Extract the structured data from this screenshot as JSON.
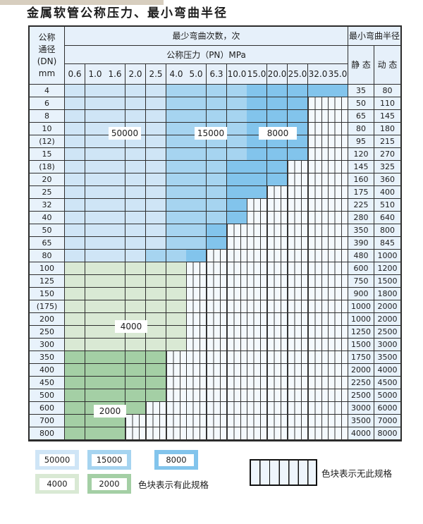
{
  "title": "金属软管公称压力、最小弯曲半径",
  "table": {
    "corner_lines": [
      "公称",
      "通径",
      "(DN)",
      "mm"
    ],
    "cycles_header": "最少弯曲次数，次",
    "pressure_header": "公称压力（PN）MPa",
    "radius_header": "最小弯曲半径",
    "static_label": "静 态",
    "dynamic_label": "动 态",
    "pressures": [
      "0.6",
      "1.0",
      "1.6",
      "2.0",
      "2.5",
      "4.0",
      "5.0",
      "6.3",
      "10.0",
      "15.0",
      "20.0",
      "25.0",
      "32.0",
      "35.0"
    ],
    "rows": [
      {
        "dn": "4",
        "st": "35",
        "dy": "80",
        "seg": [
          [
            "lb",
            5
          ],
          [
            "mb",
            4
          ],
          [
            "db",
            5
          ]
        ]
      },
      {
        "dn": "6",
        "st": "50",
        "dy": "110",
        "seg": [
          [
            "lb",
            5
          ],
          [
            "mb",
            4
          ],
          [
            "db",
            3
          ]
        ]
      },
      {
        "dn": "8",
        "st": "65",
        "dy": "145",
        "seg": [
          [
            "lb",
            5
          ],
          [
            "mb",
            4
          ],
          [
            "db",
            3
          ]
        ]
      },
      {
        "dn": "10",
        "st": "80",
        "dy": "180",
        "seg": [
          [
            "lb",
            5
          ],
          [
            "mb",
            4
          ],
          [
            "db",
            3
          ]
        ]
      },
      {
        "dn": "(12)",
        "st": "95",
        "dy": "215",
        "seg": [
          [
            "lb",
            5
          ],
          [
            "mb",
            4
          ],
          [
            "db",
            3
          ]
        ]
      },
      {
        "dn": "15",
        "st": "120",
        "dy": "270",
        "seg": [
          [
            "lb",
            5
          ],
          [
            "mb",
            4
          ],
          [
            "db",
            3
          ]
        ]
      },
      {
        "dn": "(18)",
        "st": "145",
        "dy": "325",
        "seg": [
          [
            "lb",
            5
          ],
          [
            "mb",
            3
          ],
          [
            "db",
            3
          ]
        ]
      },
      {
        "dn": "20",
        "st": "160",
        "dy": "360",
        "seg": [
          [
            "lb",
            5
          ],
          [
            "mb",
            3
          ],
          [
            "db",
            3
          ]
        ]
      },
      {
        "dn": "25",
        "st": "175",
        "dy": "400",
        "seg": [
          [
            "lb",
            5
          ],
          [
            "mb",
            3
          ],
          [
            "db",
            2
          ]
        ]
      },
      {
        "dn": "32",
        "st": "225",
        "dy": "510",
        "seg": [
          [
            "lb",
            5
          ],
          [
            "mb",
            3
          ],
          [
            "db",
            1
          ]
        ]
      },
      {
        "dn": "40",
        "st": "280",
        "dy": "640",
        "seg": [
          [
            "lb",
            5
          ],
          [
            "mb",
            3
          ],
          [
            "db",
            1
          ]
        ]
      },
      {
        "dn": "50",
        "st": "350",
        "dy": "800",
        "seg": [
          [
            "lb",
            5
          ],
          [
            "mb",
            2
          ],
          [
            "db",
            1
          ]
        ]
      },
      {
        "dn": "65",
        "st": "390",
        "dy": "845",
        "seg": [
          [
            "lb",
            5
          ],
          [
            "mb",
            2
          ],
          [
            "db",
            1
          ]
        ]
      },
      {
        "dn": "80",
        "st": "480",
        "dy": "1000",
        "seg": [
          [
            "lb",
            4
          ],
          [
            "mb",
            2
          ],
          [
            "db",
            1
          ]
        ]
      },
      {
        "dn": "100",
        "st": "600",
        "dy": "1200",
        "seg": [
          [
            "lg",
            6
          ]
        ]
      },
      {
        "dn": "125",
        "st": "750",
        "dy": "1500",
        "seg": [
          [
            "lg",
            6
          ]
        ]
      },
      {
        "dn": "150",
        "st": "900",
        "dy": "1800",
        "seg": [
          [
            "lg",
            6
          ]
        ]
      },
      {
        "dn": "(175)",
        "st": "1000",
        "dy": "2000",
        "seg": [
          [
            "lg",
            6
          ]
        ]
      },
      {
        "dn": "200",
        "st": "1000",
        "dy": "2000",
        "seg": [
          [
            "lg",
            6
          ]
        ]
      },
      {
        "dn": "250",
        "st": "1250",
        "dy": "2500",
        "seg": [
          [
            "lg",
            6
          ]
        ]
      },
      {
        "dn": "300",
        "st": "1500",
        "dy": "3000",
        "seg": [
          [
            "lg",
            6
          ]
        ]
      },
      {
        "dn": "350",
        "st": "1750",
        "dy": "3500",
        "seg": [
          [
            "mg",
            5
          ]
        ]
      },
      {
        "dn": "400",
        "st": "2000",
        "dy": "4000",
        "seg": [
          [
            "mg",
            5
          ]
        ]
      },
      {
        "dn": "450",
        "st": "2250",
        "dy": "4500",
        "seg": [
          [
            "mg",
            5
          ]
        ]
      },
      {
        "dn": "500",
        "st": "2500",
        "dy": "5000",
        "seg": [
          [
            "mg",
            5
          ]
        ]
      },
      {
        "dn": "600",
        "st": "3000",
        "dy": "6000",
        "seg": [
          [
            "mg",
            4
          ]
        ]
      },
      {
        "dn": "700",
        "st": "3500",
        "dy": "7000",
        "seg": [
          [
            "mg",
            3
          ]
        ]
      },
      {
        "dn": "800",
        "st": "4000",
        "dy": "8000",
        "seg": [
          [
            "mg",
            3
          ]
        ]
      }
    ]
  },
  "zone_labels": [
    {
      "text": "50000"
    },
    {
      "text": "15000"
    },
    {
      "text": "8000"
    },
    {
      "text": "4000"
    },
    {
      "text": "2000"
    }
  ],
  "legend": {
    "swatches": [
      {
        "label": "50000",
        "color_key": "lb"
      },
      {
        "label": "15000",
        "color_key": "mb"
      },
      {
        "label": "8000",
        "color_key": "db"
      },
      {
        "label": "4000",
        "color_key": "lg"
      },
      {
        "label": "2000",
        "color_key": "mg"
      }
    ],
    "available_note": "色块表示有此规格",
    "unavailable_note": "色块表示无此规格"
  },
  "colors": {
    "cycles_50000": "#cfe5f6",
    "cycles_15000": "#a6d4f0",
    "cycles_8000": "#82c4ec",
    "cycles_4000": "#d9e9d4",
    "cycles_2000": "#a4cfa5",
    "header_bg": "#e6f0fa",
    "label_col_bg": "#e8f2fb",
    "grid_line": "#2e2e2e"
  }
}
